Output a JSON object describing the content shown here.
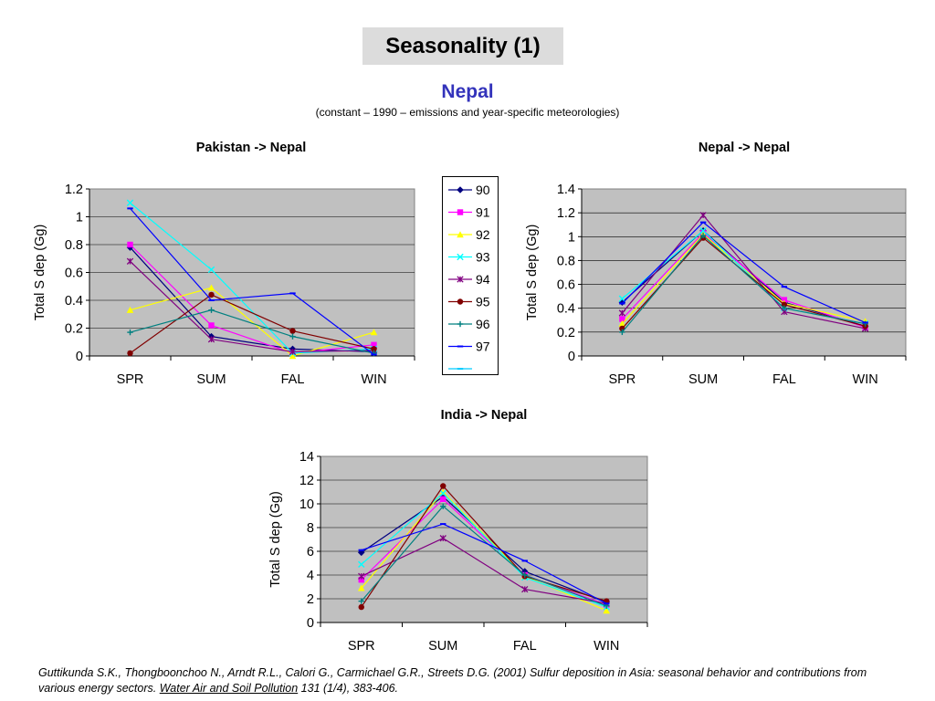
{
  "slide": {
    "title": "Seasonality (1)",
    "subject": "Nepal",
    "caption": "(constant – 1990 – emissions and year-specific meteorologies)",
    "citation": {
      "authors": "Guttikunda S.K., Thongboonchoo N., Arndt R.L., Calori G., Carmichael G.R., Streets D.G. (2001) Sulfur deposition in Asia: seasonal behavior and contributions from various energy sectors.",
      "journal": "Water Air and Soil Pollution",
      "volume": "131 (1/4), 383-406."
    }
  },
  "legend": {
    "entries": [
      {
        "name": "90",
        "color": "#000080",
        "marker": "diamond"
      },
      {
        "name": "91",
        "color": "#ff00ff",
        "marker": "square"
      },
      {
        "name": "92",
        "color": "#ffff00",
        "marker": "triangle"
      },
      {
        "name": "93",
        "color": "#00ffff",
        "marker": "x"
      },
      {
        "name": "94",
        "color": "#800080",
        "marker": "star"
      },
      {
        "name": "95",
        "color": "#800000",
        "marker": "circle"
      },
      {
        "name": "96",
        "color": "#008080",
        "marker": "plus"
      },
      {
        "name": "97",
        "color": "#0000ff",
        "marker": "dash"
      },
      {
        "name": "",
        "color": "#00ccff",
        "marker": "dash"
      }
    ]
  },
  "chart_data": [
    {
      "id": "pakistan",
      "type": "line",
      "title": "Pakistan -> Nepal",
      "ylabel": "Total S dep (Gg)",
      "xlabel": "",
      "categories": [
        "SPR",
        "SUM",
        "FAL",
        "WIN"
      ],
      "ylim": [
        0,
        1.2
      ],
      "yticks": [
        "0",
        "0.2",
        "0.4",
        "0.6",
        "0.8",
        "1",
        "1.2"
      ],
      "grid": true,
      "series": [
        {
          "name": "90",
          "values": [
            0.78,
            0.14,
            0.05,
            0.03
          ]
        },
        {
          "name": "91",
          "values": [
            0.8,
            0.22,
            0.02,
            0.08
          ]
        },
        {
          "name": "92",
          "values": [
            0.33,
            0.49,
            0.0,
            0.17
          ]
        },
        {
          "name": "93",
          "values": [
            1.1,
            0.62,
            0.02,
            0.05
          ]
        },
        {
          "name": "94",
          "values": [
            0.68,
            0.12,
            0.03,
            0.04
          ]
        },
        {
          "name": "95",
          "values": [
            0.02,
            0.44,
            0.18,
            0.05
          ]
        },
        {
          "name": "96",
          "values": [
            0.17,
            0.33,
            0.14,
            0.02
          ]
        },
        {
          "name": "97",
          "values": [
            1.06,
            0.4,
            0.45,
            0.01
          ]
        }
      ]
    },
    {
      "id": "nepal",
      "type": "line",
      "title": "Nepal -> Nepal",
      "ylabel": "Total S dep (Gg)",
      "xlabel": "",
      "categories": [
        "SPR",
        "SUM",
        "FAL",
        "WIN"
      ],
      "ylim": [
        0,
        1.4
      ],
      "yticks": [
        "0",
        "0.2",
        "0.4",
        "0.6",
        "0.8",
        "1",
        "1.2",
        "1.4"
      ],
      "grid": true,
      "series": [
        {
          "name": "90",
          "values": [
            0.45,
            1.05,
            0.45,
            0.25
          ]
        },
        {
          "name": "91",
          "values": [
            0.31,
            1.03,
            0.47,
            0.24
          ]
        },
        {
          "name": "92",
          "values": [
            0.27,
            1.02,
            0.44,
            0.29
          ]
        },
        {
          "name": "93",
          "values": [
            0.48,
            1.05,
            0.4,
            0.27
          ]
        },
        {
          "name": "94",
          "values": [
            0.36,
            1.18,
            0.37,
            0.23
          ]
        },
        {
          "name": "95",
          "values": [
            0.23,
            0.99,
            0.43,
            0.25
          ]
        },
        {
          "name": "96",
          "values": [
            0.2,
            1.01,
            0.4,
            0.27
          ]
        },
        {
          "name": "97",
          "values": [
            0.44,
            1.12,
            0.58,
            0.28
          ]
        }
      ]
    },
    {
      "id": "india",
      "type": "line",
      "title": "India -> Nepal",
      "ylabel": "Total S dep (Gg)",
      "xlabel": "",
      "categories": [
        "SPR",
        "SUM",
        "FAL",
        "WIN"
      ],
      "ylim": [
        0,
        14
      ],
      "yticks": [
        "0",
        "2",
        "4",
        "6",
        "8",
        "10",
        "12",
        "14"
      ],
      "grid": true,
      "series": [
        {
          "name": "90",
          "values": [
            5.9,
            10.6,
            4.3,
            1.7
          ]
        },
        {
          "name": "91",
          "values": [
            3.6,
            10.4,
            4.0,
            1.5
          ]
        },
        {
          "name": "92",
          "values": [
            2.9,
            11.0,
            3.9,
            1.0
          ]
        },
        {
          "name": "93",
          "values": [
            4.9,
            10.9,
            3.8,
            1.3
          ]
        },
        {
          "name": "94",
          "values": [
            3.9,
            7.1,
            2.8,
            1.6
          ]
        },
        {
          "name": "95",
          "values": [
            1.3,
            11.5,
            3.9,
            1.8
          ]
        },
        {
          "name": "96",
          "values": [
            1.8,
            9.8,
            4.0,
            1.4
          ]
        },
        {
          "name": "97",
          "values": [
            6.1,
            8.3,
            5.2,
            1.6
          ]
        }
      ]
    }
  ]
}
